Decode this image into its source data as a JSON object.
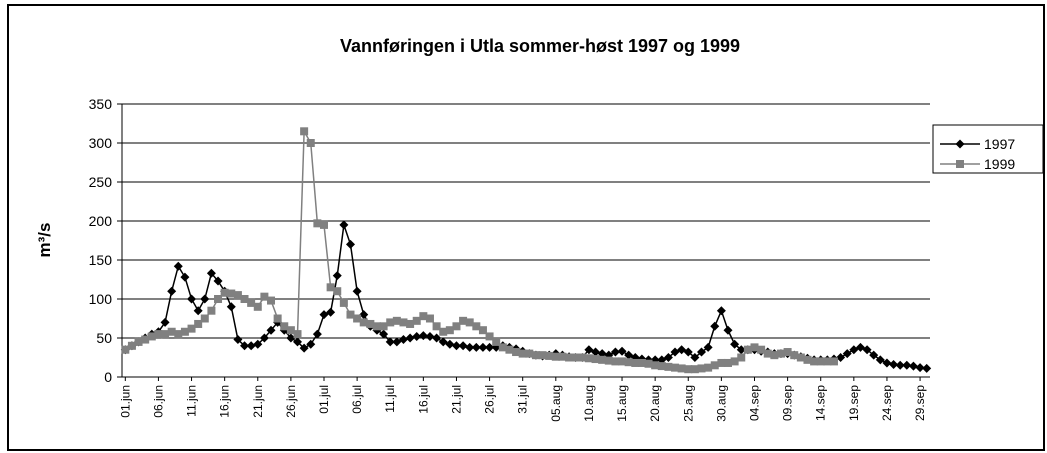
{
  "chart_data": {
    "type": "line",
    "title": "Vannføringen i Utla sommer-høst 1997 og 1999",
    "y_label": "m³/s",
    "categories": [
      "01.jun",
      null,
      null,
      null,
      null,
      "06.jun",
      null,
      null,
      null,
      null,
      "11.jun",
      null,
      null,
      null,
      null,
      "16.jun",
      null,
      null,
      null,
      null,
      "21.jun",
      null,
      null,
      null,
      null,
      "26.jun",
      null,
      null,
      null,
      null,
      "01.jul",
      null,
      null,
      null,
      null,
      "06.jul",
      null,
      null,
      null,
      null,
      "11.jul",
      null,
      null,
      null,
      null,
      "16.jul",
      null,
      null,
      null,
      null,
      "21.jul",
      null,
      null,
      null,
      null,
      "26.jul",
      null,
      null,
      null,
      null,
      "31.jul",
      null,
      null,
      null,
      null,
      "05.aug",
      null,
      null,
      null,
      null,
      "10.aug",
      null,
      null,
      null,
      null,
      "15.aug",
      null,
      null,
      null,
      null,
      "20.aug",
      null,
      null,
      null,
      null,
      "25.aug",
      null,
      null,
      null,
      null,
      "30.aug",
      null,
      null,
      null,
      null,
      "04.sep",
      null,
      null,
      null,
      null,
      "09.sep",
      null,
      null,
      null,
      null,
      "14.sep",
      null,
      null,
      null,
      null,
      "19.sep",
      null,
      null,
      null,
      null,
      "24.sep",
      null,
      null,
      null,
      null,
      "29.sep",
      null
    ],
    "series": [
      {
        "name": "1997",
        "color": "#000000",
        "marker": "diamond",
        "values": [
          35,
          40,
          45,
          50,
          55,
          58,
          70,
          110,
          142,
          128,
          100,
          85,
          100,
          133,
          123,
          110,
          90,
          48,
          40,
          40,
          42,
          50,
          60,
          70,
          60,
          50,
          45,
          37,
          42,
          55,
          80,
          83,
          130,
          195,
          170,
          110,
          80,
          65,
          60,
          55,
          45,
          45,
          48,
          50,
          52,
          53,
          52,
          50,
          45,
          42,
          40,
          40,
          38,
          38,
          38,
          38,
          38,
          40,
          38,
          36,
          33,
          30,
          28,
          27,
          28,
          30,
          28,
          26,
          25,
          25,
          35,
          32,
          30,
          28,
          32,
          33,
          28,
          25,
          23,
          22,
          22,
          22,
          25,
          32,
          35,
          32,
          25,
          32,
          38,
          65,
          85,
          60,
          42,
          35,
          35,
          35,
          33,
          32,
          30,
          30,
          30,
          28,
          26,
          24,
          22,
          22,
          22,
          23,
          25,
          30,
          35,
          38,
          35,
          28,
          22,
          18,
          16,
          15,
          15,
          14,
          12,
          11
        ]
      },
      {
        "name": "1999",
        "color": "#808080",
        "marker": "square",
        "values": [
          35,
          40,
          45,
          48,
          52,
          55,
          55,
          58,
          55,
          58,
          62,
          68,
          75,
          85,
          100,
          108,
          107,
          105,
          100,
          95,
          90,
          103,
          98,
          75,
          65,
          60,
          55,
          315,
          300,
          197,
          195,
          115,
          110,
          95,
          80,
          75,
          70,
          68,
          65,
          65,
          70,
          72,
          70,
          68,
          72,
          78,
          75,
          65,
          58,
          60,
          65,
          72,
          70,
          65,
          60,
          52,
          45,
          38,
          35,
          32,
          30,
          30,
          28,
          28,
          27,
          26,
          26,
          25,
          25,
          25,
          24,
          23,
          22,
          21,
          20,
          20,
          19,
          18,
          18,
          17,
          15,
          14,
          13,
          12,
          11,
          10,
          10,
          11,
          12,
          15,
          18,
          18,
          20,
          25,
          35,
          38,
          35,
          30,
          28,
          30,
          32,
          28,
          25,
          22,
          20,
          20,
          20,
          20,
          null,
          null,
          null,
          null,
          null,
          null,
          null,
          null,
          null,
          null,
          null,
          null,
          null,
          null
        ]
      }
    ],
    "ylim": [
      0,
      350
    ],
    "yticks": [
      0,
      50,
      100,
      150,
      200,
      250,
      300,
      350
    ],
    "grid": true,
    "legend": "right"
  }
}
